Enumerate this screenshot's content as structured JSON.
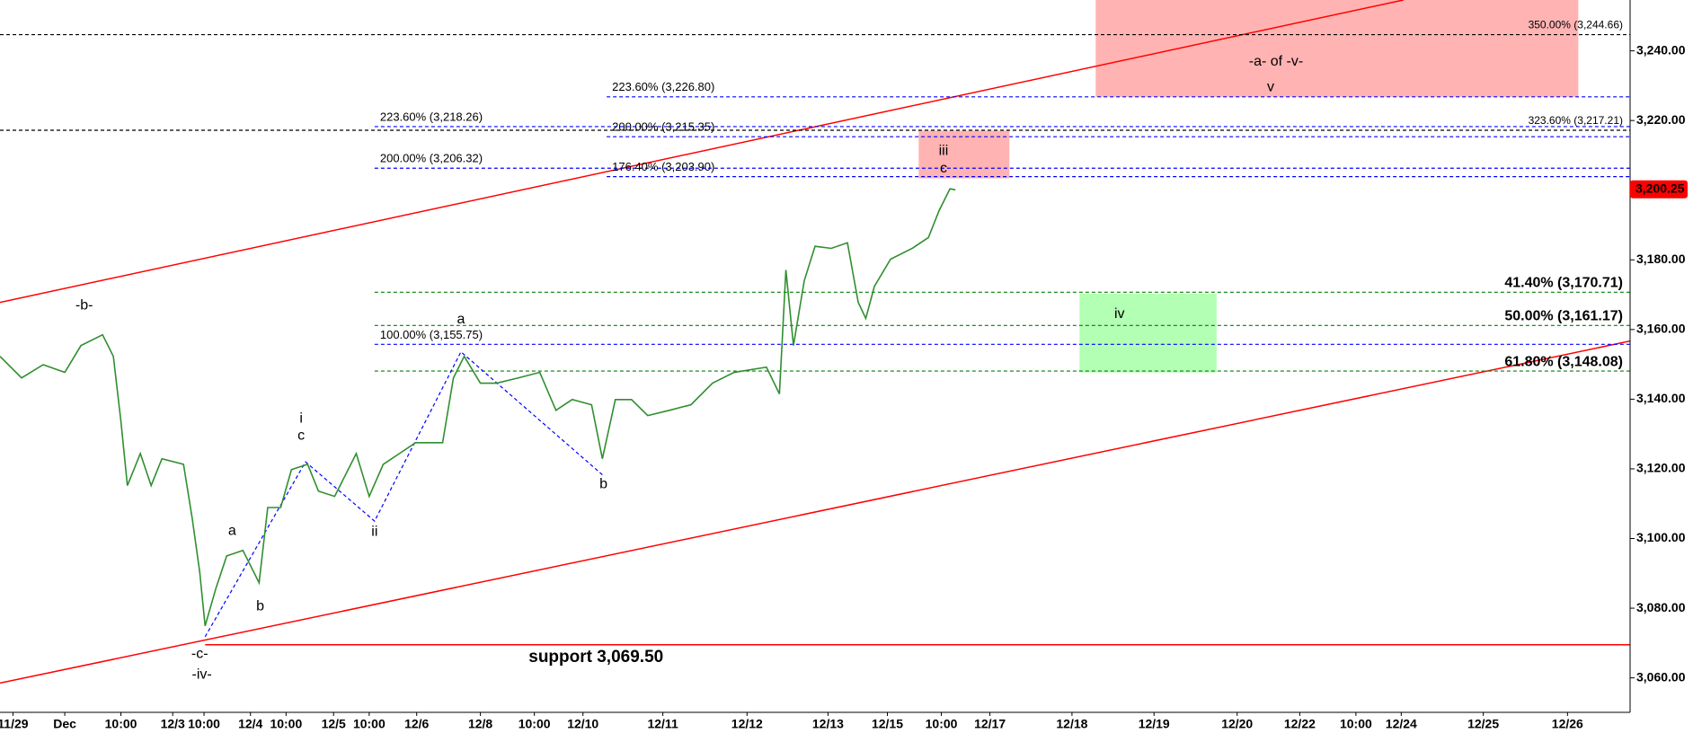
{
  "chart_data": {
    "type": "line",
    "xlim": [
      0,
      755
    ],
    "ylim": [
      3050.1,
      3254.6
    ],
    "xticks": [
      {
        "value": 6,
        "label": "11/29"
      },
      {
        "value": 30,
        "label": "Dec"
      },
      {
        "value": 56,
        "label": "10:00"
      },
      {
        "value": 80,
        "label": "12/3"
      },
      {
        "value": 94.5,
        "label": "10:00"
      },
      {
        "value": 116,
        "label": "12/4"
      },
      {
        "value": 132.5,
        "label": "10:00"
      },
      {
        "value": 154.5,
        "label": "12/5"
      },
      {
        "value": 171,
        "label": "10:00"
      },
      {
        "value": 193,
        "label": "12/6"
      },
      {
        "value": 222.5,
        "label": "12/8"
      },
      {
        "value": 247.5,
        "label": "10:00"
      },
      {
        "value": 270,
        "label": "12/10"
      },
      {
        "value": 307,
        "label": "12/11"
      },
      {
        "value": 346,
        "label": "12/12"
      },
      {
        "value": 383.5,
        "label": "12/13"
      },
      {
        "value": 411,
        "label": "12/15"
      },
      {
        "value": 436,
        "label": "10:00"
      },
      {
        "value": 458.5,
        "label": "12/17"
      },
      {
        "value": 496.5,
        "label": "12/18"
      },
      {
        "value": 534.5,
        "label": "12/19"
      },
      {
        "value": 573,
        "label": "12/20"
      },
      {
        "value": 602,
        "label": "12/22"
      },
      {
        "value": 628,
        "label": "10:00"
      },
      {
        "value": 649,
        "label": "12/24"
      },
      {
        "value": 687,
        "label": "12/25"
      },
      {
        "value": 726,
        "label": "12/26"
      }
    ],
    "yticks": [
      {
        "value": 3060,
        "label": "3,060.00"
      },
      {
        "value": 3080,
        "label": "3,080.00"
      },
      {
        "value": 3100,
        "label": "3,100.00"
      },
      {
        "value": 3120,
        "label": "3,120.00"
      },
      {
        "value": 3140,
        "label": "3,140.00"
      },
      {
        "value": 3160,
        "label": "3,160.00"
      },
      {
        "value": 3180,
        "label": "3,180.00"
      },
      {
        "value": 3200,
        "label": "3,200.00"
      },
      {
        "value": 3220,
        "label": "3,220.00"
      },
      {
        "value": 3240,
        "label": "3,240.00"
      }
    ],
    "series": [
      {
        "color": "#2f8f2f",
        "x": [
          0,
          10,
          20,
          30,
          37.5,
          47.5,
          52.5,
          56,
          59,
          65,
          70,
          75,
          85,
          89,
          92.5,
          95,
          100,
          105,
          112.5,
          120,
          124,
          130,
          135,
          142.5,
          147.5,
          155,
          165,
          171,
          177.5,
          185,
          192.5,
          205,
          210,
          215,
          222.5,
          230,
          240,
          250,
          257.5,
          265,
          274,
          279,
          285,
          292.5,
          300,
          310,
          320,
          330,
          340,
          355,
          361,
          364,
          367.5,
          372.5,
          377.5,
          385,
          392.5,
          397.5,
          401,
          405,
          412.5,
          422.5,
          430,
          435,
          440,
          442.5
        ],
        "values": [
          3152.3,
          3146.1,
          3149.9,
          3147.7,
          3155.4,
          3158.5,
          3152.3,
          3133.7,
          3115.2,
          3124.4,
          3115.2,
          3122.9,
          3121.3,
          3105.9,
          3090.4,
          3074.9,
          3085.7,
          3095.0,
          3096.6,
          3087.3,
          3108.9,
          3108.9,
          3119.8,
          3121.3,
          3113.6,
          3112.1,
          3124.4,
          3112.1,
          3121.3,
          3124.4,
          3127.5,
          3127.5,
          3146.1,
          3152.3,
          3144.6,
          3144.6,
          3146.1,
          3147.7,
          3136.8,
          3139.9,
          3138.4,
          3122.9,
          3139.9,
          3139.9,
          3135.3,
          3136.8,
          3138.4,
          3144.6,
          3147.7,
          3149.2,
          3141.5,
          3177.1,
          3155.4,
          3174.0,
          3183.9,
          3183.3,
          3184.9,
          3167.8,
          3163.2,
          3172.4,
          3180.2,
          3183.3,
          3186.4,
          3194.2,
          3200.4,
          3200.1
        ]
      }
    ],
    "last_price": {
      "value": 3200.25,
      "label": "3,200.25",
      "color": "#ff0000"
    },
    "levels": [
      {
        "label": "350.00% (3,244.66)",
        "value": 3244.66,
        "x_start": 0,
        "color": "#000000",
        "dashed": true
      },
      {
        "label": "223.60% (3,226.80)",
        "value": 3226.8,
        "x_start": 281,
        "color": "#0000ff",
        "dashed": true
      },
      {
        "label": "223.60% (3,218.26)",
        "value": 3218.26,
        "x_start": 173.5,
        "color": "#0000ff",
        "dashed": true
      },
      {
        "label": "323.60% (3,217.21)",
        "value": 3217.21,
        "x_start": 0,
        "color": "#000000",
        "dashed": true
      },
      {
        "label": "200.00% (3,215.35)",
        "value": 3215.35,
        "x_start": 281,
        "color": "#0000ff",
        "dashed": true
      },
      {
        "label": "200.00% (3,206.32)",
        "value": 3206.32,
        "x_start": 173.5,
        "color": "#0000ff",
        "dashed": true
      },
      {
        "label": "176.40% (3,203.90)",
        "value": 3203.9,
        "x_start": 281,
        "color": "#0000ff",
        "dashed": true
      },
      {
        "label": "41.40% (3,170.71)",
        "value": 3170.71,
        "x_start": 173.5,
        "color": "#008000",
        "dashed": true
      },
      {
        "label": "50.00% (3,161.17)",
        "value": 3161.17,
        "x_start": 173.5,
        "color": "#008000",
        "dashed": true
      },
      {
        "label": "100.00% (3,155.75)",
        "value": 3155.75,
        "x_start": 173.5,
        "color": "#0000ff",
        "dashed": true
      },
      {
        "label": "61.80% (3,148.08)",
        "value": 3148.08,
        "x_start": 173.5,
        "color": "#008000",
        "dashed": true
      },
      {
        "label": "support 3,069.50",
        "value": 3069.5,
        "x_start": 95,
        "color": "#ff0000",
        "dashed": false
      }
    ],
    "zones": [
      {
        "x": [
          507.5,
          731
        ],
        "y": [
          3226.8,
          3254.6
        ],
        "color": "#ffb3b3"
      },
      {
        "x": [
          425.5,
          467.5
        ],
        "y": [
          3203.4,
          3217.1
        ],
        "color": "#ffb3b3"
      },
      {
        "x": [
          500,
          563.5
        ],
        "y": [
          3147.7,
          3170.3
        ],
        "color": "#b3ffb3"
      }
    ],
    "channels": [
      {
        "x": [
          0,
          650
        ],
        "y": [
          3167.8,
          3254.6
        ],
        "color": "#ff0000"
      },
      {
        "x": [
          0,
          755
        ],
        "y": [
          3058.5,
          3156.7
        ],
        "color": "#ff0000"
      }
    ],
    "wave_path": {
      "color": "#0000ff",
      "x": [
        95,
        141.5,
        173.5,
        213.5,
        279
      ],
      "y": [
        3071.8,
        3122.0,
        3105.0,
        3153.6,
        3118.3
      ]
    },
    "annotations": [
      {
        "text": "-b-",
        "x": 39,
        "y": 3166.9
      },
      {
        "text": "a",
        "x": 107.5,
        "y": 3102.1
      },
      {
        "text": "b",
        "x": 120.5,
        "y": 3080.5
      },
      {
        "text": "-c-",
        "x": 92.5,
        "y": 3066.8
      },
      {
        "text": "-iv-",
        "x": 93.5,
        "y": 3060.9
      },
      {
        "text": "i",
        "x": 139.5,
        "y": 3134.4
      },
      {
        "text": "c",
        "x": 139.5,
        "y": 3129.4
      },
      {
        "text": "ii",
        "x": 173.5,
        "y": 3101.8
      },
      {
        "text": "a",
        "x": 213.5,
        "y": 3162.9
      },
      {
        "text": "b",
        "x": 279.5,
        "y": 3115.5
      },
      {
        "text": "iii",
        "x": 437,
        "y": 3211.2
      },
      {
        "text": "c",
        "x": 437,
        "y": 3206.2
      },
      {
        "text": "iv",
        "x": 518.5,
        "y": 3164.4
      },
      {
        "text": "-a- of -v-",
        "x": 591,
        "y": 3236.9
      },
      {
        "text": "v",
        "x": 588.5,
        "y": 3229.5
      }
    ]
  }
}
